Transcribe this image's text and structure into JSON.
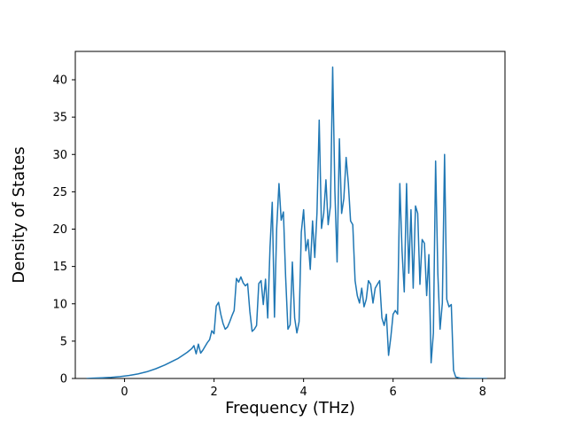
{
  "chart_data": {
    "type": "line",
    "title": "",
    "xlabel": "Frequency (THz)",
    "ylabel": "Density of States",
    "xlim": [
      -1.1,
      8.5
    ],
    "ylim": [
      0,
      43.8
    ],
    "xticks": [
      0,
      2,
      4,
      6,
      8
    ],
    "yticks": [
      0,
      5,
      10,
      15,
      20,
      25,
      30,
      35,
      40
    ],
    "grid": false,
    "legend": "none",
    "line_color": "#1f77b4",
    "axis_color": "#000000",
    "background_color": "#ffffff",
    "series": [
      {
        "name": "Density of States",
        "points": [
          [
            -0.85,
            0.0
          ],
          [
            -0.7,
            0.05
          ],
          [
            -0.5,
            0.1
          ],
          [
            -0.3,
            0.15
          ],
          [
            -0.1,
            0.25
          ],
          [
            0.1,
            0.4
          ],
          [
            0.3,
            0.6
          ],
          [
            0.5,
            0.9
          ],
          [
            0.7,
            1.3
          ],
          [
            0.9,
            1.8
          ],
          [
            1.0,
            2.1
          ],
          [
            1.1,
            2.4
          ],
          [
            1.2,
            2.7
          ],
          [
            1.3,
            3.1
          ],
          [
            1.4,
            3.5
          ],
          [
            1.5,
            4.0
          ],
          [
            1.55,
            4.4
          ],
          [
            1.6,
            3.3
          ],
          [
            1.65,
            4.6
          ],
          [
            1.7,
            3.4
          ],
          [
            1.75,
            3.8
          ],
          [
            1.8,
            4.3
          ],
          [
            1.85,
            4.8
          ],
          [
            1.9,
            5.2
          ],
          [
            1.95,
            6.4
          ],
          [
            2.0,
            6.0
          ],
          [
            2.05,
            9.7
          ],
          [
            2.1,
            10.2
          ],
          [
            2.15,
            8.6
          ],
          [
            2.2,
            7.4
          ],
          [
            2.25,
            6.6
          ],
          [
            2.3,
            6.9
          ],
          [
            2.35,
            7.6
          ],
          [
            2.4,
            8.4
          ],
          [
            2.45,
            9.1
          ],
          [
            2.5,
            13.4
          ],
          [
            2.55,
            12.9
          ],
          [
            2.6,
            13.6
          ],
          [
            2.65,
            12.8
          ],
          [
            2.7,
            12.4
          ],
          [
            2.75,
            12.7
          ],
          [
            2.8,
            9.0
          ],
          [
            2.85,
            6.3
          ],
          [
            2.9,
            6.6
          ],
          [
            2.95,
            7.1
          ],
          [
            3.0,
            12.7
          ],
          [
            3.05,
            13.1
          ],
          [
            3.1,
            9.9
          ],
          [
            3.15,
            13.3
          ],
          [
            3.2,
            8.1
          ],
          [
            3.25,
            17.6
          ],
          [
            3.3,
            23.6
          ],
          [
            3.35,
            8.2
          ],
          [
            3.4,
            20.1
          ],
          [
            3.45,
            26.1
          ],
          [
            3.5,
            21.2
          ],
          [
            3.55,
            22.3
          ],
          [
            3.6,
            13.6
          ],
          [
            3.65,
            6.6
          ],
          [
            3.7,
            7.2
          ],
          [
            3.75,
            15.6
          ],
          [
            3.8,
            8.1
          ],
          [
            3.85,
            6.1
          ],
          [
            3.9,
            7.6
          ],
          [
            3.95,
            19.6
          ],
          [
            4.0,
            22.6
          ],
          [
            4.05,
            17.1
          ],
          [
            4.1,
            18.6
          ],
          [
            4.15,
            14.6
          ],
          [
            4.2,
            21.1
          ],
          [
            4.25,
            16.2
          ],
          [
            4.3,
            22.2
          ],
          [
            4.35,
            34.6
          ],
          [
            4.4,
            20.1
          ],
          [
            4.45,
            22.1
          ],
          [
            4.5,
            26.6
          ],
          [
            4.55,
            20.6
          ],
          [
            4.6,
            23.1
          ],
          [
            4.65,
            41.7
          ],
          [
            4.7,
            25.1
          ],
          [
            4.75,
            15.6
          ],
          [
            4.8,
            32.1
          ],
          [
            4.85,
            22.1
          ],
          [
            4.9,
            24.1
          ],
          [
            4.95,
            29.6
          ],
          [
            5.0,
            26.1
          ],
          [
            5.05,
            21.1
          ],
          [
            5.1,
            20.6
          ],
          [
            5.15,
            13.1
          ],
          [
            5.2,
            11.1
          ],
          [
            5.25,
            10.1
          ],
          [
            5.3,
            12.1
          ],
          [
            5.35,
            9.6
          ],
          [
            5.4,
            10.6
          ],
          [
            5.45,
            13.1
          ],
          [
            5.5,
            12.6
          ],
          [
            5.55,
            10.1
          ],
          [
            5.6,
            12.1
          ],
          [
            5.65,
            12.6
          ],
          [
            5.7,
            13.1
          ],
          [
            5.75,
            8.1
          ],
          [
            5.8,
            7.1
          ],
          [
            5.85,
            8.6
          ],
          [
            5.9,
            3.1
          ],
          [
            5.95,
            5.6
          ],
          [
            6.0,
            8.6
          ],
          [
            6.05,
            9.1
          ],
          [
            6.1,
            8.6
          ],
          [
            6.15,
            26.1
          ],
          [
            6.2,
            17.1
          ],
          [
            6.25,
            11.6
          ],
          [
            6.3,
            26.1
          ],
          [
            6.35,
            14.1
          ],
          [
            6.4,
            22.6
          ],
          [
            6.45,
            12.1
          ],
          [
            6.5,
            23.1
          ],
          [
            6.55,
            22.1
          ],
          [
            6.6,
            12.6
          ],
          [
            6.65,
            18.6
          ],
          [
            6.7,
            18.1
          ],
          [
            6.75,
            11.1
          ],
          [
            6.8,
            16.6
          ],
          [
            6.85,
            2.1
          ],
          [
            6.9,
            6.1
          ],
          [
            6.95,
            29.1
          ],
          [
            7.0,
            14.1
          ],
          [
            7.05,
            6.6
          ],
          [
            7.1,
            10.1
          ],
          [
            7.15,
            30.0
          ],
          [
            7.2,
            10.6
          ],
          [
            7.25,
            9.6
          ],
          [
            7.3,
            9.9
          ],
          [
            7.35,
            1.1
          ],
          [
            7.4,
            0.2
          ],
          [
            7.5,
            0.05
          ],
          [
            7.7,
            0.0
          ],
          [
            7.9,
            0.0
          ],
          [
            8.1,
            0.0
          ]
        ]
      }
    ]
  }
}
